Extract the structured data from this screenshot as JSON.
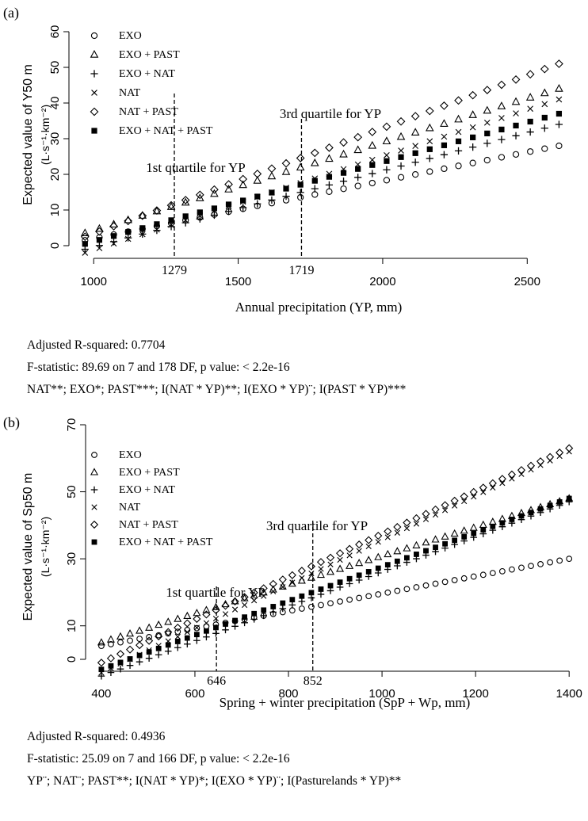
{
  "panels": [
    {
      "tag": "(a)",
      "ylabel_main": "Expected value of Y50 m",
      "ylabel_unit": "(L·s⁻¹·km⁻²)",
      "xlabel": "Annual precipitation (YP, mm)",
      "legend": [
        "EXO",
        "EXO + PAST",
        "EXO + NAT",
        "NAT",
        "NAT + PAST",
        "EXO + NAT + PAST"
      ],
      "quartile1_label": "1st quartile for YP",
      "quartile3_label": "3rd quartile for YP",
      "quartile1_value": "1279",
      "quartile3_value": "1719",
      "stats": [
        "Adjusted R-squared:  0.7704",
        "F-statistic: 89.69 on 7 and 178 DF,  p value: < 2.2e-16",
        "NAT**; EXO*; PAST***; I(NAT * YP)**; I(EXO * YP)¨; I(PAST * YP)***"
      ]
    },
    {
      "tag": "(b)",
      "ylabel_main": "Expected value of Sp50 m",
      "ylabel_unit": "(L·s⁻¹·km⁻²)",
      "xlabel": "Spring +  winter precipitation (SpP + Wp, mm)",
      "legend": [
        "EXO",
        "EXO + PAST",
        "EXO + NAT",
        "NAT",
        "NAT + PAST",
        "EXO + NAT + PAST"
      ],
      "quartile1_label": "1st quartile for YP",
      "quartile3_label": "3rd quartile for YP",
      "quartile1_value": "646",
      "quartile3_value": "852",
      "stats": [
        "Adjusted R-squared:  0.4936",
        "F-statistic: 25.09 on 7 and 166 DF,  p value: < 2.2e-16",
        "YP¨; NAT¨; PAST**; I(NAT * YP)*; I(EXO * YP)¨; I(Pasturelands * YP)**"
      ]
    }
  ],
  "chart_data": [
    {
      "type": "scatter",
      "xlabel": "Annual precipitation (YP, mm)",
      "ylabel": "Expected value of Y50 m (L·s⁻¹·km⁻²)",
      "xlim": [
        950,
        2650
      ],
      "ylim": [
        0,
        60
      ],
      "xticks": [
        1000,
        1500,
        2000,
        2500
      ],
      "yticks": [
        0,
        10,
        20,
        30,
        40,
        50,
        60
      ],
      "vlines": [
        1279,
        1719
      ],
      "x_range": [
        970,
        2610
      ],
      "n_points": 34,
      "series": [
        {
          "name": "EXO",
          "marker": "circle",
          "y_start": 1.5,
          "y_end": 28
        },
        {
          "name": "EXO + PAST",
          "marker": "triangle",
          "y_start": 3.5,
          "y_end": 44
        },
        {
          "name": "EXO + NAT",
          "marker": "plus",
          "y_start": -1,
          "y_end": 34
        },
        {
          "name": "NAT",
          "marker": "x",
          "y_start": -2,
          "y_end": 41
        },
        {
          "name": "NAT + PAST",
          "marker": "diamond",
          "y_start": 2.5,
          "y_end": 51
        },
        {
          "name": "EXO + NAT + PAST",
          "marker": "square",
          "y_start": 0.5,
          "y_end": 37
        }
      ]
    },
    {
      "type": "scatter",
      "xlabel": "Spring +  winter precipitation (SpP + Wp, mm)",
      "ylabel": "Expected value of Sp50 m (L·s⁻¹·km⁻²)",
      "xlim": [
        390,
        1420
      ],
      "ylim": [
        0,
        70
      ],
      "xticks": [
        400,
        600,
        800,
        1000,
        1200,
        1400
      ],
      "yticks": [
        0,
        10,
        30,
        50,
        70
      ],
      "vlines": [
        646,
        852
      ],
      "x_range": [
        400,
        1400
      ],
      "n_points": 50,
      "series": [
        {
          "name": "EXO",
          "marker": "circle",
          "y_start": 4,
          "y_end": 30
        },
        {
          "name": "EXO + PAST",
          "marker": "triangle",
          "y_start": 5,
          "y_end": 48
        },
        {
          "name": "EXO + NAT",
          "marker": "plus",
          "y_start": -5,
          "y_end": 47
        },
        {
          "name": "NAT",
          "marker": "x",
          "y_start": -4,
          "y_end": 62
        },
        {
          "name": "NAT + PAST",
          "marker": "diamond",
          "y_start": -1,
          "y_end": 63
        },
        {
          "name": "EXO + NAT + PAST",
          "marker": "square",
          "y_start": -3,
          "y_end": 48
        }
      ]
    }
  ]
}
